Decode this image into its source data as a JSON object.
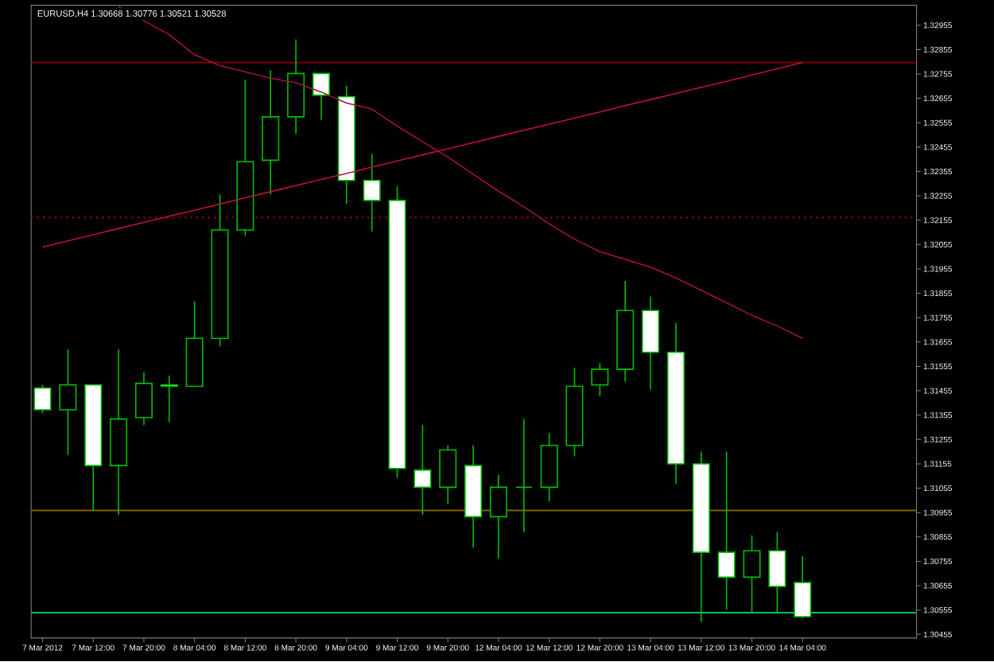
{
  "chart_data": {
    "type": "candlestick",
    "title": "EURUSD,H4 1.30668 1.30776 1.30521 1.30528",
    "categories": [
      "7 Mar 2012",
      null,
      "7 Mar 12:00",
      null,
      "7 Mar 20:00",
      null,
      "8 Mar 04:00",
      null,
      "8 Mar 12:00",
      null,
      "8 Mar 20:00",
      null,
      "9 Mar 04:00",
      null,
      "9 Mar 12:00",
      null,
      "9 Mar 20:00",
      null,
      "12 Mar 04:00",
      null,
      "12 Mar 12:00",
      null,
      "12 Mar 20:00",
      null,
      "13 Mar 04:00",
      null,
      "13 Mar 12:00",
      null,
      "13 Mar 20:00",
      null,
      "14 Mar 04:00"
    ],
    "ohlc": [
      [
        1.31466,
        1.31479,
        1.31364,
        1.31377
      ],
      [
        1.31377,
        1.31625,
        1.31193,
        1.31479
      ],
      [
        1.31479,
        1.31479,
        1.30964,
        1.31148
      ],
      [
        1.31148,
        1.31625,
        1.30945,
        1.31339
      ],
      [
        1.31345,
        1.3153,
        1.31314,
        1.31485
      ],
      [
        1.31479,
        1.31517,
        1.31326,
        1.31473
      ],
      [
        1.31473,
        1.31822,
        1.31473,
        1.3167
      ],
      [
        1.3167,
        1.32261,
        1.31638,
        1.32115
      ],
      [
        1.32115,
        1.32732,
        1.3209,
        1.32395
      ],
      [
        1.32401,
        1.3277,
        1.32261,
        1.32579
      ],
      [
        1.32579,
        1.32897,
        1.32509,
        1.32757
      ],
      [
        1.32757,
        1.32757,
        1.32567,
        1.32668
      ],
      [
        1.32662,
        1.32706,
        1.32223,
        1.32318
      ],
      [
        1.32318,
        1.32427,
        1.32109,
        1.32236
      ],
      [
        1.32236,
        1.32293,
        1.31097,
        1.31136
      ],
      [
        1.31129,
        1.31314,
        1.30945,
        1.31059
      ],
      [
        1.31059,
        1.31231,
        1.30989,
        1.31212
      ],
      [
        1.31148,
        1.31231,
        1.30811,
        1.30938
      ],
      [
        1.30938,
        1.3111,
        1.30767,
        1.31059
      ],
      [
        1.31059,
        1.31339,
        1.30875,
        1.31059
      ],
      [
        1.31059,
        1.31282,
        1.31002,
        1.31231
      ],
      [
        1.31231,
        1.31549,
        1.31186,
        1.31473
      ],
      [
        1.31479,
        1.31568,
        1.31434,
        1.31543
      ],
      [
        1.31543,
        1.31905,
        1.31492,
        1.31784
      ],
      [
        1.31784,
        1.31841,
        1.3146,
        1.31613
      ],
      [
        1.31613,
        1.31733,
        1.31072,
        1.31155
      ],
      [
        1.31155,
        1.31205,
        1.30506,
        1.30792
      ],
      [
        1.30792,
        1.31205,
        1.30557,
        1.3069
      ],
      [
        1.3069,
        1.30862,
        1.30544,
        1.30798
      ],
      [
        1.30798,
        1.30875,
        1.30544,
        1.30652
      ],
      [
        1.30668,
        1.30776,
        1.30521,
        1.30528
      ]
    ],
    "color": "#00c000",
    "colors": [
      "#ffffff",
      "#000000",
      "#ffffff",
      "#000000",
      "#000000",
      "#ffffff",
      "#000000",
      "#000000",
      "#000000",
      "#000000",
      "#000000",
      "#ffffff",
      "#ffffff",
      "#ffffff",
      "#ffffff",
      "#ffffff",
      "#000000",
      "#ffffff",
      "#000000",
      "#00c000",
      "#000000",
      "#000000",
      "#000000",
      "#000000",
      "#ffffff",
      "#ffffff",
      "#ffffff",
      "#ffffff",
      "#000000",
      "#ffffff",
      "#ffffff"
    ],
    "series": [
      {
        "type": "line",
        "color": "#a0104a",
        "values": [
          null,
          null,
          null,
          1.33031,
          1.32974,
          1.32916,
          1.32834,
          1.32789,
          1.32764,
          1.32738,
          1.32719,
          1.32681,
          1.32636,
          1.32611,
          1.32541,
          1.32477,
          1.32414,
          1.32344,
          1.32274,
          1.3221,
          1.3214,
          1.32077,
          1.32026,
          1.31994,
          1.31962,
          1.31918,
          1.31867,
          1.31816,
          1.31765,
          1.31721,
          1.3167
        ]
      },
      {
        "type": "line",
        "color": "#c0103a",
        "values": [
          1.32045,
          1.3207,
          1.32095,
          1.32121,
          1.32146,
          1.32171,
          1.32196,
          1.32221,
          1.32247,
          1.32272,
          1.32297,
          1.32322,
          1.32347,
          1.32373,
          1.32398,
          1.32423,
          1.32448,
          1.32473,
          1.32499,
          1.32524,
          1.32549,
          1.32574,
          1.32599,
          1.32625,
          1.3265,
          1.32675,
          1.327,
          1.32725,
          1.32751,
          1.32776,
          1.32802
        ]
      }
    ],
    "ref_lines": [
      {
        "axis": "y",
        "value": 1.32802,
        "color": "#800000",
        "line_style": "solid"
      },
      {
        "axis": "y",
        "value": 1.32166,
        "color": "#a00000",
        "line_style": "dotted"
      },
      {
        "axis": "y",
        "value": 1.30964,
        "color": "#806000",
        "line_style": "solid"
      },
      {
        "axis": "y",
        "value": 1.30544,
        "color": "#00c060",
        "line_style": "solid"
      }
    ],
    "ylim": [
      1.3044,
      1.33037
    ],
    "yticks": [
      1.30455,
      1.30555,
      1.30655,
      1.30755,
      1.30855,
      1.30955,
      1.31055,
      1.31155,
      1.31255,
      1.31355,
      1.31455,
      1.31555,
      1.31655,
      1.31755,
      1.31855,
      1.31955,
      1.32055,
      1.32155,
      1.32255,
      1.32355,
      1.32455,
      1.32555,
      1.32655,
      1.32755,
      1.32855,
      1.32955
    ]
  }
}
